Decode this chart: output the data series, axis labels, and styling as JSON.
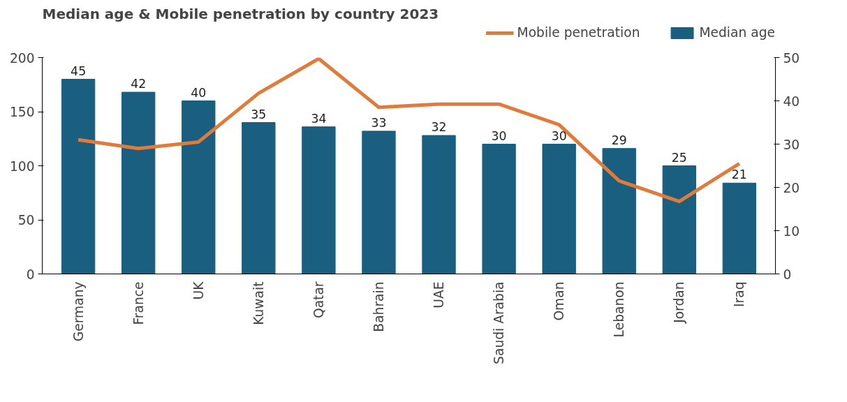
{
  "chart_data": {
    "type": "bar",
    "title": "Median age & Mobile penetration by country 2023",
    "categories": [
      "Germany",
      "France",
      "UK",
      "Kuwait",
      "Qatar",
      "Bahrain",
      "UAE",
      "Saudi Arabia",
      "Oman",
      "Lebanon",
      "Jordan",
      "Iraq"
    ],
    "series": [
      {
        "name": "Mobile penetration",
        "type": "line",
        "color": "#e07b39",
        "values": [
          124,
          116,
          122,
          167,
          199,
          154,
          157,
          157,
          138,
          86,
          67,
          102
        ]
      },
      {
        "name": "Median age",
        "axis": "y2",
        "color": "#1a5e80",
        "values": [
          45,
          42,
          40,
          35,
          34,
          33,
          32,
          30,
          30,
          29,
          25,
          21
        ],
        "data_labels": true
      }
    ],
    "ylim": [
      0,
      200
    ],
    "yticks": [
      0,
      50,
      100,
      150,
      200
    ],
    "y2lim": [
      0,
      50
    ],
    "y2ticks": [
      0,
      10,
      20,
      30,
      40,
      50
    ],
    "grid": false,
    "legend": "top right"
  }
}
